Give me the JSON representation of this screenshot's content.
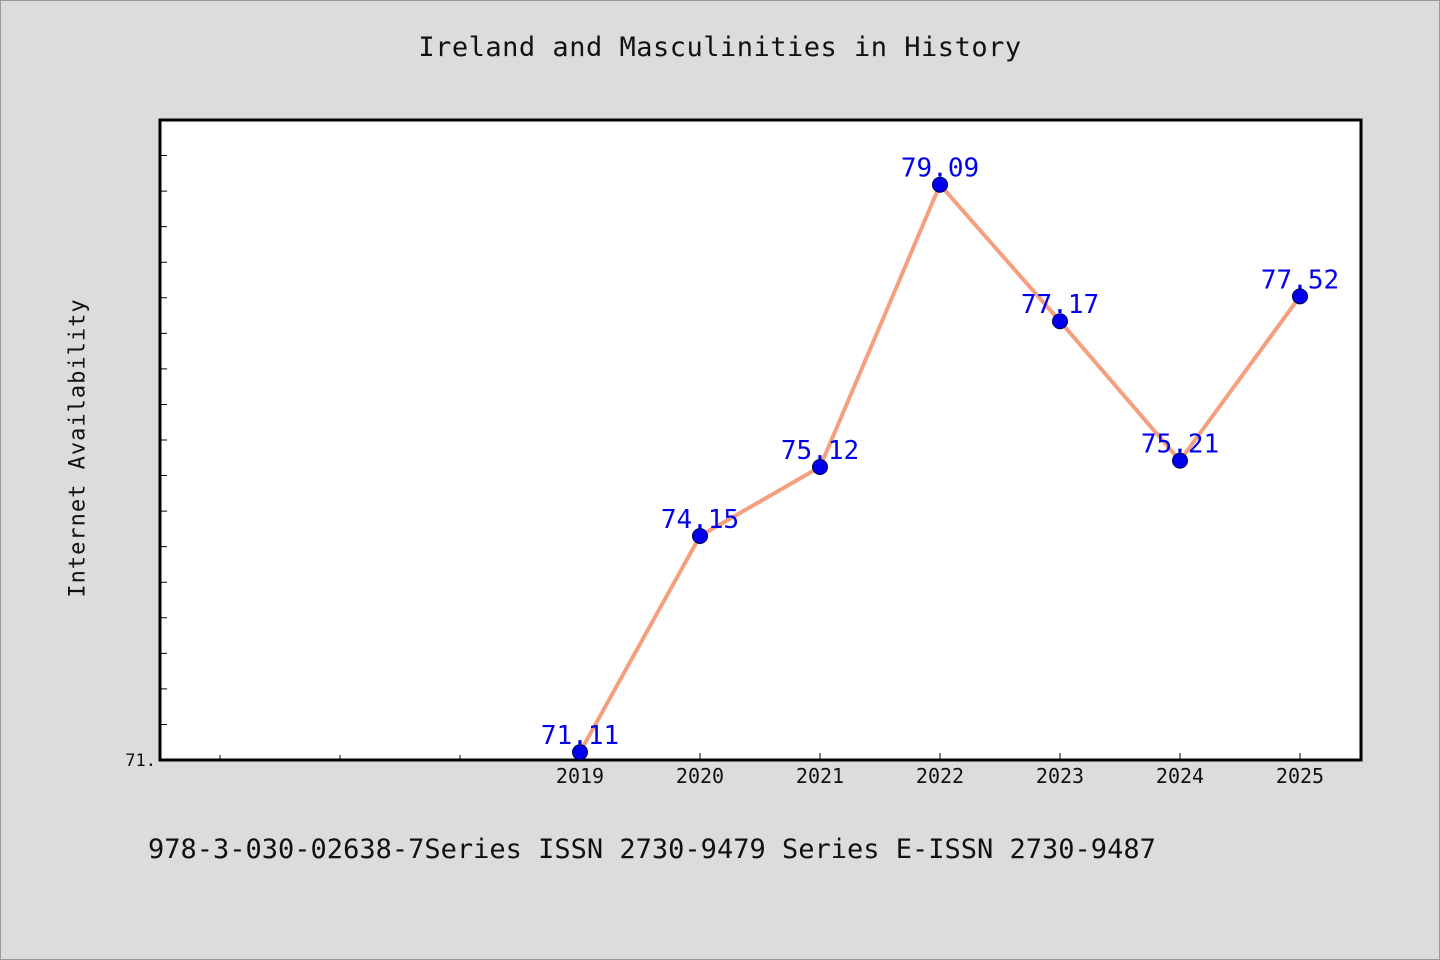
{
  "chart_data": {
    "type": "line",
    "title": "Ireland and Masculinities in History",
    "xlabel": "",
    "ylabel": "Internet Availability",
    "categories": [
      "2019",
      "2020",
      "2021",
      "2022",
      "2023",
      "2024",
      "2025"
    ],
    "series": [
      {
        "values": [
          71.11,
          74.15,
          75.12,
          79.09,
          77.17,
          75.21,
          77.52
        ],
        "labels": [
          "71.11",
          "74.15",
          "75.12",
          "79.09",
          "77.17",
          "75.21",
          "77.52"
        ]
      }
    ],
    "ylim": [
      71.0,
      80.0
    ],
    "y_tick_labels": [
      {
        "value": 71.0,
        "label": "71."
      }
    ],
    "line_color": "#f4a07f",
    "marker_color": "#0000ee",
    "label_color": "#0000ee",
    "plot_background": "#ffffff",
    "page_background": "#dcdcdc",
    "grid": false
  },
  "footer": "978-3-030-02638-7Series ISSN 2730-9479 Series E-ISSN 2730-9487"
}
